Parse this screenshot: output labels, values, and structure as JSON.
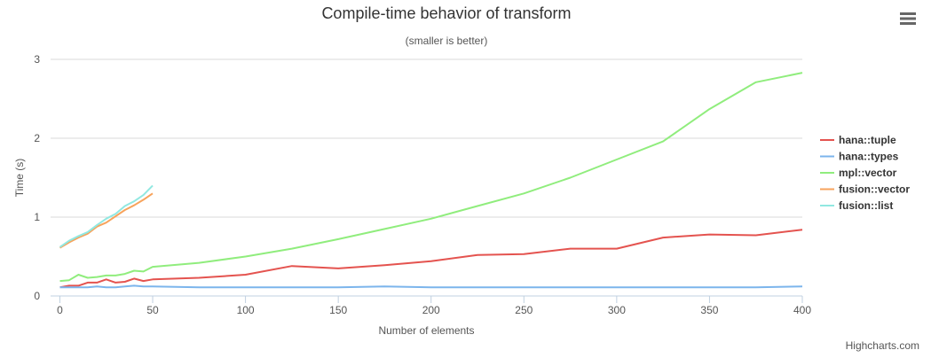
{
  "menu": {
    "icon": "hamburger-menu-icon"
  },
  "credits": "Highcharts.com",
  "chart_data": {
    "type": "line",
    "title": "Compile-time behavior of transform",
    "subtitle": "(smaller is better)",
    "xlabel": "Number of elements",
    "ylabel": "Time (s)",
    "xlim": [
      -5,
      400
    ],
    "ylim": [
      0,
      3
    ],
    "xticks": [
      0,
      50,
      100,
      150,
      200,
      250,
      300,
      350,
      400
    ],
    "yticks": [
      0,
      1,
      2,
      3
    ],
    "grid": true,
    "legend_position": "right",
    "series": [
      {
        "name": "hana::tuple",
        "color": "#e4534f",
        "x": [
          0,
          5,
          10,
          15,
          20,
          25,
          30,
          35,
          40,
          45,
          50,
          75,
          100,
          125,
          150,
          175,
          200,
          225,
          250,
          275,
          300,
          325,
          350,
          375,
          400
        ],
        "y": [
          0.11,
          0.13,
          0.13,
          0.17,
          0.17,
          0.21,
          0.17,
          0.18,
          0.22,
          0.19,
          0.21,
          0.23,
          0.27,
          0.38,
          0.35,
          0.39,
          0.44,
          0.52,
          0.53,
          0.6,
          0.6,
          0.74,
          0.78,
          0.77,
          0.84
        ]
      },
      {
        "name": "hana::types",
        "color": "#7cb5ec",
        "x": [
          0,
          5,
          10,
          15,
          20,
          25,
          30,
          35,
          40,
          45,
          50,
          75,
          100,
          125,
          150,
          175,
          200,
          225,
          250,
          275,
          300,
          325,
          350,
          375,
          400
        ],
        "y": [
          0.11,
          0.11,
          0.11,
          0.11,
          0.12,
          0.11,
          0.11,
          0.12,
          0.13,
          0.12,
          0.12,
          0.11,
          0.11,
          0.11,
          0.11,
          0.12,
          0.11,
          0.11,
          0.11,
          0.11,
          0.11,
          0.11,
          0.11,
          0.11,
          0.12
        ]
      },
      {
        "name": "mpl::vector",
        "color": "#90ed7d",
        "x": [
          0,
          5,
          10,
          15,
          20,
          25,
          30,
          35,
          40,
          45,
          50,
          75,
          100,
          125,
          150,
          175,
          200,
          225,
          250,
          275,
          300,
          325,
          350,
          375,
          400
        ],
        "y": [
          0.19,
          0.2,
          0.27,
          0.23,
          0.24,
          0.26,
          0.26,
          0.28,
          0.32,
          0.31,
          0.37,
          0.42,
          0.5,
          0.6,
          0.72,
          0.85,
          0.98,
          1.14,
          1.3,
          1.5,
          1.73,
          1.96,
          2.37,
          2.71,
          2.83
        ]
      },
      {
        "name": "fusion::vector",
        "color": "#f7a35c",
        "x": [
          0,
          5,
          10,
          15,
          20,
          25,
          30,
          35,
          40,
          45,
          50
        ],
        "y": [
          0.61,
          0.68,
          0.74,
          0.79,
          0.88,
          0.93,
          1.01,
          1.09,
          1.15,
          1.22,
          1.3
        ]
      },
      {
        "name": "fusion::list",
        "color": "#91e8e1",
        "x": [
          0,
          5,
          10,
          15,
          20,
          25,
          30,
          35,
          40,
          45,
          50
        ],
        "y": [
          0.62,
          0.7,
          0.76,
          0.81,
          0.9,
          0.98,
          1.04,
          1.14,
          1.2,
          1.28,
          1.4
        ]
      }
    ]
  }
}
